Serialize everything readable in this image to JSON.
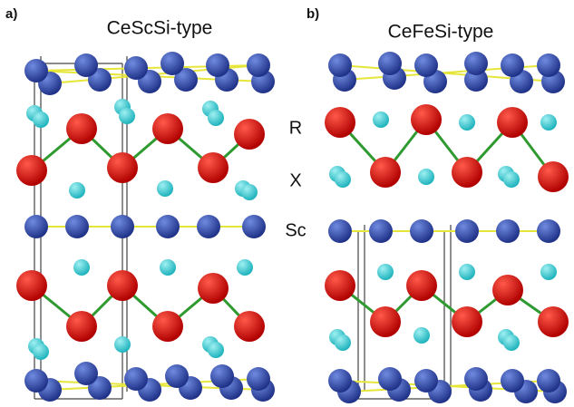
{
  "panels": [
    {
      "label": "a)",
      "title": "CeScSi-type"
    },
    {
      "label": "b)",
      "title": "CeFeSi-type"
    }
  ],
  "site_labels": [
    "R",
    "X",
    "Sc"
  ]
}
